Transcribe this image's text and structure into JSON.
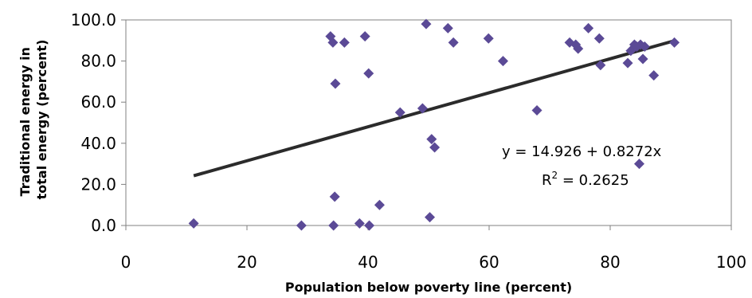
{
  "chart_data": {
    "type": "scatter",
    "xlabel": "Population below poverty line (percent)",
    "ylabel_line1": "Traditional energy in",
    "ylabel_line2": "total energy (percent)",
    "xlim": [
      0,
      100
    ],
    "ylim": [
      0,
      100
    ],
    "x_ticks": [
      "0",
      "20",
      "40",
      "60",
      "80",
      "100"
    ],
    "y_ticks": [
      "0.0",
      "20.0",
      "40.0",
      "60.0",
      "80.0",
      "100.0"
    ],
    "grid": false,
    "marker_color": "#5b4a96",
    "line_color": "#2b2b2b",
    "points": [
      {
        "x": 11.2,
        "y": 1
      },
      {
        "x": 29,
        "y": 0
      },
      {
        "x": 33.8,
        "y": 92
      },
      {
        "x": 34.2,
        "y": 89
      },
      {
        "x": 34.3,
        "y": 0
      },
      {
        "x": 34.6,
        "y": 69
      },
      {
        "x": 34.5,
        "y": 14
      },
      {
        "x": 36.1,
        "y": 89
      },
      {
        "x": 38.6,
        "y": 1
      },
      {
        "x": 39.5,
        "y": 92
      },
      {
        "x": 40.1,
        "y": 74
      },
      {
        "x": 40.2,
        "y": 0
      },
      {
        "x": 41.9,
        "y": 10
      },
      {
        "x": 45.3,
        "y": 55
      },
      {
        "x": 49,
        "y": 57
      },
      {
        "x": 49.6,
        "y": 98
      },
      {
        "x": 50.2,
        "y": 4
      },
      {
        "x": 50.5,
        "y": 42
      },
      {
        "x": 51,
        "y": 38
      },
      {
        "x": 53.2,
        "y": 96
      },
      {
        "x": 54.1,
        "y": 89
      },
      {
        "x": 59.9,
        "y": 91
      },
      {
        "x": 62.3,
        "y": 80
      },
      {
        "x": 67.9,
        "y": 56
      },
      {
        "x": 73.3,
        "y": 89
      },
      {
        "x": 74.7,
        "y": 86
      },
      {
        "x": 74.3,
        "y": 88
      },
      {
        "x": 76.4,
        "y": 96
      },
      {
        "x": 78.2,
        "y": 91
      },
      {
        "x": 78.4,
        "y": 78
      },
      {
        "x": 82.9,
        "y": 79
      },
      {
        "x": 83.4,
        "y": 85
      },
      {
        "x": 84,
        "y": 88
      },
      {
        "x": 84.4,
        "y": 87
      },
      {
        "x": 84.8,
        "y": 30
      },
      {
        "x": 85,
        "y": 88
      },
      {
        "x": 85.4,
        "y": 81
      },
      {
        "x": 85.7,
        "y": 87
      },
      {
        "x": 87.2,
        "y": 73
      },
      {
        "x": 90.6,
        "y": 89
      }
    ],
    "trendline": {
      "intercept": 14.926,
      "slope": 0.8272,
      "x_start": 11.2,
      "x_end": 90.6,
      "equation": "y = 14.926 + 0.8272x",
      "r2_label": "R",
      "r2_sup": "2",
      "r2_value": " = 0.2625"
    }
  }
}
